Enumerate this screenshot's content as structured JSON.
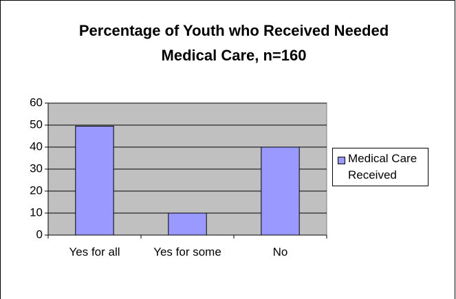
{
  "chart_data": {
    "type": "bar",
    "title": "Percentage of Youth who Received Needed Medical Care, n=160",
    "categories": [
      "Yes for all",
      "Yes for some",
      "No"
    ],
    "series": [
      {
        "name": "Medical Care Received",
        "color": "#9999ff",
        "values": [
          49.5,
          10,
          40
        ]
      }
    ],
    "ylim": [
      0,
      60
    ],
    "yticks": [
      0,
      10,
      20,
      30,
      40,
      50,
      60
    ],
    "grid": true,
    "legend": "right"
  }
}
